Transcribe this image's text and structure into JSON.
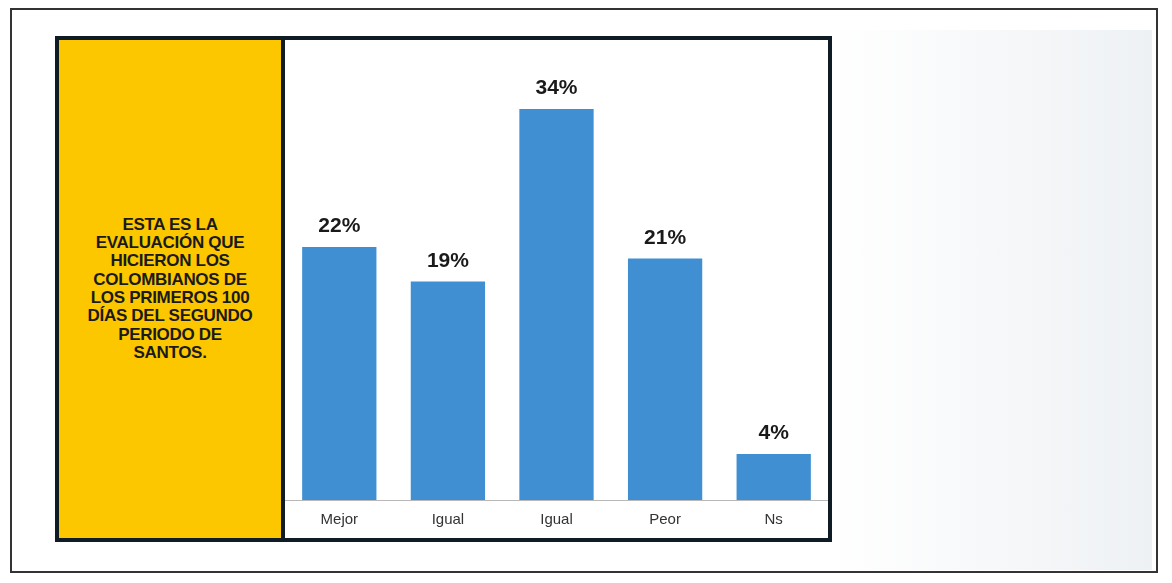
{
  "chart_data": {
    "type": "bar",
    "title": "ESTA ES LA EVALUACIÓN QUE HICIERON LOS COLOMBIANOS DE LOS PRIMEROS 100 DÍAS DEL SEGUNDO PERIODO DE SANTOS.",
    "categories": [
      "Mejor",
      "Igual",
      "Igual",
      "Peor",
      "Ns"
    ],
    "values": [
      22,
      19,
      34,
      21,
      4
    ],
    "value_labels": [
      "22%",
      "19%",
      "34%",
      "21%",
      "4%"
    ],
    "color": "#3f8fd2",
    "ylim": [
      0,
      40
    ],
    "grid": false,
    "data_labels": true,
    "tick_labels": "x"
  }
}
